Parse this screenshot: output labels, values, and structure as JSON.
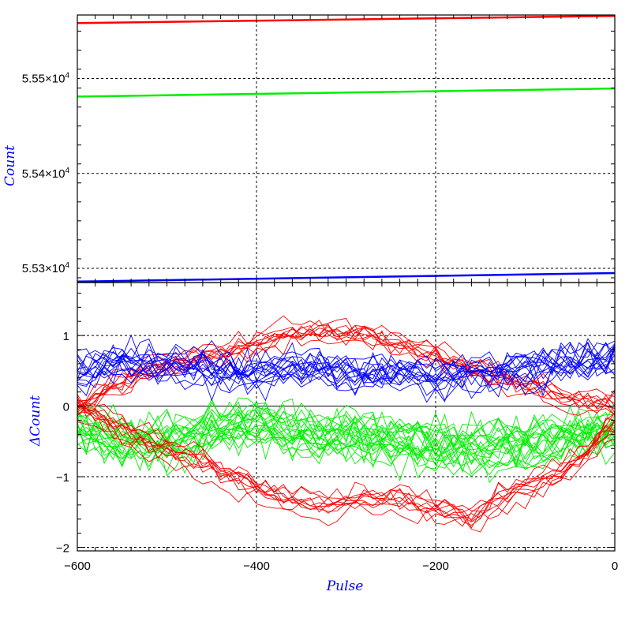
{
  "chart_data": [
    {
      "type": "line",
      "panel": "top",
      "ylabel": "Count",
      "xlim": [
        -600,
        0
      ],
      "ylim": [
        55285,
        55567
      ],
      "yticks_major": [
        55300,
        55400,
        55500
      ],
      "yticks_labels": [
        {
          "mantissa": "5.53×10",
          "exp": "4"
        },
        {
          "mantissa": "5.54×10",
          "exp": "4"
        },
        {
          "mantissa": "5.55×10",
          "exp": "4"
        }
      ],
      "grid": true,
      "series": [
        {
          "color": "#ff0000",
          "x": [
            -600,
            0
          ],
          "y": [
            55558.5,
            55566
          ]
        },
        {
          "color": "#00ee00",
          "x": [
            -600,
            0
          ],
          "y": [
            55481,
            55489.5
          ]
        },
        {
          "color": "#0000ff",
          "x": [
            -600,
            0
          ],
          "y": [
            55286,
            55295
          ]
        }
      ]
    },
    {
      "type": "line",
      "panel": "bottom",
      "xlabel": "Pulse",
      "ylabel": "ΔCount",
      "xlim": [
        -600,
        0
      ],
      "ylim": [
        -2.05,
        1.75
      ],
      "yticks_major": [
        -2,
        -1,
        0,
        1
      ],
      "yticks_labels": [
        "−2",
        "−1",
        "0",
        "1"
      ],
      "xticks_major": [
        -600,
        -400,
        -200,
        0
      ],
      "xticks_labels": [
        "−600",
        "−400",
        "−200",
        "0"
      ],
      "grid": true,
      "description_of_series": "many noisy traces per color",
      "groups": [
        {
          "color": "#0000ff",
          "mean": [
            0.5,
            0.6,
            0.65,
            0.6,
            0.55,
            0.5,
            0.5,
            0.55,
            0.55,
            0.5,
            0.5,
            0.45,
            0.45,
            0.5,
            0.5,
            0.55,
            0.6,
            0.65,
            0.7
          ],
          "spread": 0.35,
          "traces": 16
        },
        {
          "color": "#ff0000",
          "mean": [
            0.0,
            0.3,
            0.55,
            0.65,
            0.75,
            0.9,
            1.05,
            1.1,
            1.05,
            0.9,
            0.75,
            0.55,
            0.4,
            0.25,
            0.1,
            0.05
          ],
          "spread": 0.22,
          "traces": 10
        },
        {
          "color": "#ff0000",
          "mean": [
            0.0,
            -0.35,
            -0.55,
            -0.75,
            -0.95,
            -1.2,
            -1.4,
            -1.45,
            -1.35,
            -1.35,
            -1.5,
            -1.6,
            -1.3,
            -1.1,
            -0.8,
            -0.3
          ],
          "spread": 0.22,
          "traces": 10
        },
        {
          "color": "#00ee00",
          "mean": [
            -0.3,
            -0.45,
            -0.5,
            -0.45,
            -0.3,
            -0.25,
            -0.35,
            -0.4,
            -0.45,
            -0.5,
            -0.55,
            -0.6,
            -0.55,
            -0.5,
            -0.4,
            -0.35
          ],
          "spread": 0.4,
          "traces": 22
        }
      ]
    }
  ],
  "axes_titles": {
    "top_ylabel": "Count",
    "bottom_ylabel": "ΔCount",
    "xlabel": "Pulse"
  }
}
